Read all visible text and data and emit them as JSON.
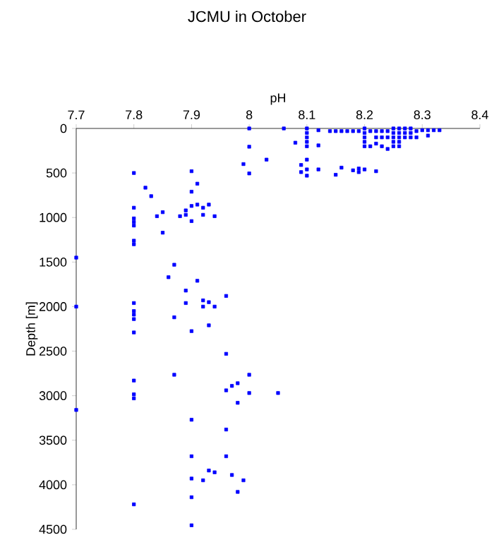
{
  "chart_data": {
    "type": "scatter",
    "title": "JCMU in October",
    "xlabel": "pH",
    "ylabel": "Depth [m]",
    "xlim": [
      7.7,
      8.4
    ],
    "xticks": [
      7.7,
      7.8,
      7.9,
      8,
      8.1,
      8.2,
      8.3,
      8.4
    ],
    "ylim": [
      4500,
      0
    ],
    "yticks": [
      0,
      500,
      1000,
      1500,
      2000,
      2500,
      3000,
      3500,
      4000,
      4500
    ],
    "marker": "square",
    "grid": false,
    "series": [
      {
        "color": "#0000ff",
        "x": [
          7.8,
          7.9,
          7.99,
          7.91,
          7.82,
          7.83,
          7.9,
          7.8,
          7.9,
          7.91,
          7.92,
          7.93,
          7.89,
          7.89,
          7.88,
          7.85,
          7.84,
          7.8,
          7.8,
          7.8,
          7.9,
          7.92,
          7.94,
          7.85,
          7.8,
          7.8,
          7.7,
          7.87,
          7.86,
          7.91,
          7.89,
          7.96,
          7.92,
          7.93,
          7.89,
          7.8,
          7.92,
          7.94,
          7.7,
          7.8,
          7.8,
          7.8,
          7.87,
          7.9,
          7.93,
          7.8,
          7.96,
          7.87,
          7.8,
          7.8,
          7.8,
          7.96,
          7.97,
          7.98,
          7.98,
          7.7,
          7.9,
          7.96,
          7.96,
          7.9,
          7.93,
          7.94,
          7.9,
          7.92,
          7.97,
          7.99,
          7.98,
          7.9,
          7.8,
          7.9,
          8.0,
          8.0,
          8.0,
          8.03,
          8.06,
          8.08,
          8.1,
          8.1,
          8.1,
          8.1,
          8.1,
          8.1,
          8.09,
          8.09,
          8.1,
          8.1,
          8.12,
          8.12,
          8.12,
          8.14,
          8.15,
          8.15,
          8.16,
          8.16,
          8.17,
          8.18,
          8.19,
          8.18,
          8.19,
          8.19,
          8.2,
          8.2,
          8.2,
          8.2,
          8.2,
          8.2,
          8.22,
          8.21,
          8.21,
          8.22,
          8.22,
          8.22,
          8.23,
          8.23,
          8.23,
          8.24,
          8.24,
          8.24,
          8.25,
          8.25,
          8.25,
          8.25,
          8.25,
          8.26,
          8.26,
          8.26,
          8.26,
          8.26,
          8.27,
          8.27,
          8.27,
          8.28,
          8.28,
          8.28,
          8.29,
          8.29,
          8.3,
          8.31,
          8.32,
          8.33,
          8.31,
          8.0,
          8.0,
          8.05
        ],
        "values": [
          500,
          480,
          400,
          620,
          665,
          760,
          710,
          890,
          870,
          855,
          890,
          855,
          920,
          970,
          985,
          940,
          985,
          1010,
          1050,
          1090,
          1040,
          970,
          985,
          1170,
          1260,
          1300,
          1450,
          1530,
          1670,
          1710,
          1820,
          1880,
          1930,
          1950,
          1960,
          1960,
          2000,
          2000,
          2000,
          2050,
          2090,
          2140,
          2120,
          2275,
          2210,
          2290,
          2530,
          2765,
          2830,
          2985,
          3030,
          2940,
          2890,
          2860,
          3080,
          3160,
          3270,
          3380,
          3680,
          3680,
          3840,
          3860,
          3930,
          3950,
          3890,
          3950,
          4080,
          4140,
          4220,
          4455,
          0,
          205,
          505,
          350,
          0,
          160,
          0,
          50,
          100,
          150,
          200,
          350,
          410,
          490,
          460,
          530,
          20,
          190,
          460,
          30,
          30,
          520,
          440,
          30,
          30,
          30,
          30,
          470,
          450,
          490,
          0,
          50,
          100,
          150,
          200,
          460,
          480,
          30,
          200,
          30,
          100,
          170,
          30,
          100,
          200,
          30,
          100,
          230,
          0,
          50,
          100,
          150,
          200,
          0,
          50,
          100,
          150,
          200,
          0,
          50,
          100,
          0,
          50,
          100,
          30,
          100,
          20,
          20,
          20,
          20,
          80,
          2765,
          2970,
          2970
        ]
      }
    ]
  }
}
